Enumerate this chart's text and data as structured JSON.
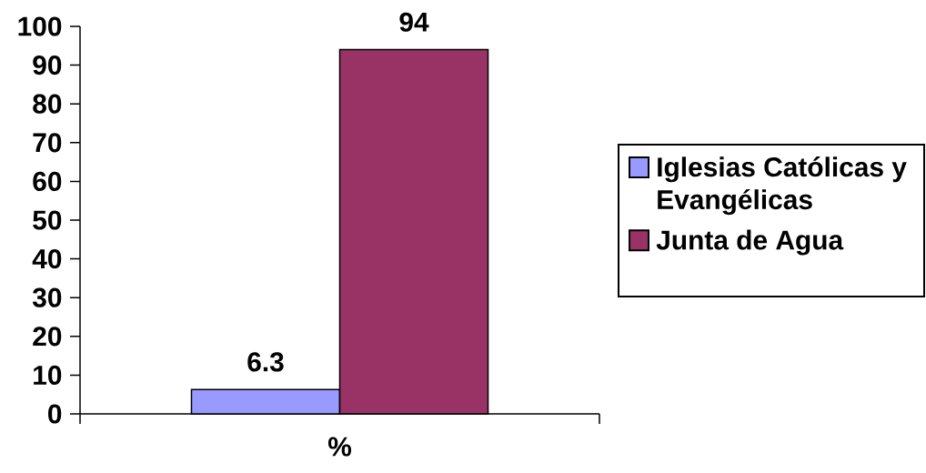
{
  "chart_data": {
    "type": "bar",
    "categories": [
      "%"
    ],
    "series": [
      {
        "name": "Iglesias Católicas y Evangélicas",
        "color": "#9999ff",
        "values": [
          6.3
        ]
      },
      {
        "name": "Junta de Agua",
        "color": "#993366",
        "values": [
          94
        ]
      }
    ],
    "ylim": [
      0,
      100
    ],
    "yticks": [
      0,
      10,
      20,
      30,
      40,
      50,
      60,
      70,
      80,
      90,
      100
    ],
    "data_labels": true,
    "legend": "right"
  }
}
